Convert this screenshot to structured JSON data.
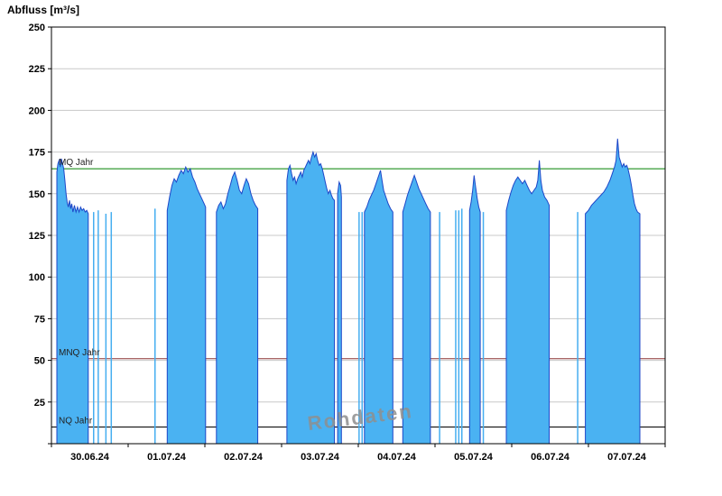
{
  "title": "Abfluss [m³/s]",
  "colors": {
    "area_fill": "#4ab2f2",
    "area_stroke": "#1d46c8",
    "spike": "#45aef0",
    "mq_line": "#008000",
    "mnq_line": "#8b3333",
    "nq_line": "#000000",
    "grid": "#c8c8c8",
    "frame": "#000000",
    "watermark": "#8f8f8f"
  },
  "chart_data": {
    "type": "area",
    "title": "Abfluss [m³/s]",
    "ylabel": "Abfluss [m³/s]",
    "xlabel": "",
    "watermark": "Rohdaten",
    "grid": "horizontal",
    "ylim": [
      0,
      250
    ],
    "y_ticks": [
      0,
      25,
      50,
      75,
      100,
      125,
      150,
      175,
      200,
      225,
      250
    ],
    "y_tick_labels_shown": [
      "25",
      "50",
      "75",
      "100",
      "125",
      "150",
      "175",
      "200",
      "225",
      "250"
    ],
    "xlim_days": [
      0,
      8
    ],
    "x_unit": "days, 0 = 29.06.24 12:00",
    "x_ticks": [
      {
        "label": "30.06.24",
        "day": 0.5
      },
      {
        "label": "01.07.24",
        "day": 1.5
      },
      {
        "label": "02.07.24",
        "day": 2.5
      },
      {
        "label": "03.07.24",
        "day": 3.5
      },
      {
        "label": "04.07.24",
        "day": 4.5
      },
      {
        "label": "05.07.24",
        "day": 5.5
      },
      {
        "label": "06.07.24",
        "day": 6.5
      },
      {
        "label": "07.07.24",
        "day": 7.5
      }
    ],
    "reference_lines": [
      {
        "label": "MQ Jahr",
        "value": 165,
        "color": "mq_line"
      },
      {
        "label": "MNQ Jahr",
        "value": 51,
        "color": "mnq_line"
      },
      {
        "label": "NQ Jahr",
        "value": 10,
        "color": "nq_line"
      }
    ],
    "series": [
      {
        "name": "Rohdaten",
        "unit": "m³/s",
        "segments": [
          [
            [
              0.07,
              163
            ],
            [
              0.085,
              168
            ],
            [
              0.1,
              170
            ],
            [
              0.115,
              166
            ],
            [
              0.13,
              171
            ],
            [
              0.145,
              168
            ],
            [
              0.16,
              165
            ],
            [
              0.175,
              158
            ],
            [
              0.19,
              150
            ],
            [
              0.205,
              145
            ],
            [
              0.22,
              142
            ],
            [
              0.235,
              146
            ],
            [
              0.25,
              141
            ],
            [
              0.265,
              144
            ],
            [
              0.28,
              139
            ],
            [
              0.3,
              143
            ],
            [
              0.32,
              139
            ],
            [
              0.34,
              142
            ],
            [
              0.36,
              139
            ],
            [
              0.38,
              142
            ],
            [
              0.4,
              140
            ],
            [
              0.42,
              141
            ],
            [
              0.44,
              139
            ],
            [
              0.46,
              140
            ],
            [
              0.48,
              138
            ]
          ],
          [
            [
              1.51,
              140
            ],
            [
              1.54,
              148
            ],
            [
              1.57,
              155
            ],
            [
              1.6,
              159
            ],
            [
              1.63,
              157
            ],
            [
              1.66,
              161
            ],
            [
              1.69,
              164
            ],
            [
              1.72,
              162
            ],
            [
              1.75,
              166
            ],
            [
              1.78,
              163
            ],
            [
              1.81,
              165
            ],
            [
              1.84,
              160
            ],
            [
              1.87,
              157
            ],
            [
              1.9,
              153
            ],
            [
              1.93,
              150
            ],
            [
              1.96,
              147
            ],
            [
              1.99,
              144
            ],
            [
              2.01,
              142
            ]
          ],
          [
            [
              2.15,
              139
            ],
            [
              2.18,
              143
            ],
            [
              2.21,
              145
            ],
            [
              2.24,
              141
            ],
            [
              2.27,
              144
            ],
            [
              2.3,
              150
            ],
            [
              2.33,
              155
            ],
            [
              2.36,
              160
            ],
            [
              2.39,
              163
            ],
            [
              2.42,
              158
            ],
            [
              2.45,
              152
            ],
            [
              2.48,
              150
            ],
            [
              2.51,
              155
            ],
            [
              2.54,
              159
            ],
            [
              2.57,
              156
            ],
            [
              2.6,
              150
            ],
            [
              2.63,
              146
            ],
            [
              2.66,
              143
            ],
            [
              2.69,
              141
            ]
          ],
          [
            [
              3.07,
              158
            ],
            [
              3.09,
              165
            ],
            [
              3.11,
              167
            ],
            [
              3.13,
              162
            ],
            [
              3.15,
              158
            ],
            [
              3.17,
              160
            ],
            [
              3.19,
              156
            ],
            [
              3.21,
              159
            ],
            [
              3.23,
              161
            ],
            [
              3.25,
              163
            ],
            [
              3.27,
              160
            ],
            [
              3.29,
              164
            ],
            [
              3.31,
              166
            ],
            [
              3.33,
              168
            ],
            [
              3.35,
              170
            ],
            [
              3.37,
              168
            ],
            [
              3.39,
              172
            ],
            [
              3.41,
              175
            ],
            [
              3.43,
              172
            ],
            [
              3.45,
              174
            ],
            [
              3.47,
              170
            ],
            [
              3.49,
              167
            ],
            [
              3.51,
              168
            ],
            [
              3.53,
              165
            ],
            [
              3.55,
              161
            ],
            [
              3.57,
              157
            ],
            [
              3.59,
              153
            ],
            [
              3.61,
              150
            ],
            [
              3.63,
              152
            ],
            [
              3.65,
              149
            ],
            [
              3.67,
              147
            ],
            [
              3.69,
              146
            ]
          ],
          [
            [
              3.73,
              150
            ],
            [
              3.75,
              157
            ],
            [
              3.77,
              155
            ],
            [
              3.78,
              148
            ]
          ],
          [
            [
              4.08,
              139
            ],
            [
              4.11,
              142
            ],
            [
              4.14,
              146
            ],
            [
              4.17,
              149
            ],
            [
              4.2,
              152
            ],
            [
              4.23,
              156
            ],
            [
              4.26,
              160
            ],
            [
              4.29,
              164
            ],
            [
              4.31,
              158
            ],
            [
              4.33,
              152
            ],
            [
              4.36,
              148
            ],
            [
              4.39,
              144
            ],
            [
              4.42,
              141
            ],
            [
              4.45,
              139
            ]
          ],
          [
            [
              4.58,
              139
            ],
            [
              4.61,
              144
            ],
            [
              4.64,
              149
            ],
            [
              4.67,
              153
            ],
            [
              4.7,
              157
            ],
            [
              4.73,
              161
            ],
            [
              4.76,
              157
            ],
            [
              4.79,
              153
            ],
            [
              4.82,
              150
            ],
            [
              4.85,
              147
            ],
            [
              4.88,
              144
            ],
            [
              4.91,
              141
            ],
            [
              4.94,
              139
            ]
          ],
          [
            [
              5.45,
              140
            ],
            [
              5.47,
              145
            ],
            [
              5.49,
              152
            ],
            [
              5.51,
              161
            ],
            [
              5.53,
              154
            ],
            [
              5.55,
              147
            ],
            [
              5.57,
              142
            ],
            [
              5.59,
              139
            ]
          ],
          [
            [
              5.93,
              140
            ],
            [
              5.96,
              146
            ],
            [
              5.99,
              151
            ],
            [
              6.02,
              155
            ],
            [
              6.05,
              158
            ],
            [
              6.08,
              160
            ],
            [
              6.11,
              158
            ],
            [
              6.14,
              156
            ],
            [
              6.17,
              158
            ],
            [
              6.2,
              155
            ],
            [
              6.23,
              152
            ],
            [
              6.26,
              150
            ],
            [
              6.29,
              152
            ],
            [
              6.32,
              154
            ],
            [
              6.34,
              158
            ],
            [
              6.36,
              170
            ],
            [
              6.38,
              158
            ],
            [
              6.4,
              152
            ],
            [
              6.43,
              148
            ],
            [
              6.46,
              146
            ],
            [
              6.49,
              143
            ]
          ],
          [
            [
              6.96,
              138
            ],
            [
              7.0,
              140
            ],
            [
              7.04,
              143
            ],
            [
              7.08,
              145
            ],
            [
              7.12,
              147
            ],
            [
              7.16,
              149
            ],
            [
              7.2,
              151
            ],
            [
              7.24,
              154
            ],
            [
              7.28,
              158
            ],
            [
              7.31,
              162
            ],
            [
              7.34,
              166
            ],
            [
              7.36,
              170
            ],
            [
              7.38,
              183
            ],
            [
              7.4,
              172
            ],
            [
              7.42,
              169
            ],
            [
              7.44,
              166
            ],
            [
              7.46,
              168
            ],
            [
              7.48,
              166
            ],
            [
              7.5,
              167
            ],
            [
              7.52,
              164
            ],
            [
              7.54,
              160
            ],
            [
              7.56,
              155
            ],
            [
              7.58,
              149
            ],
            [
              7.6,
              144
            ],
            [
              7.62,
              141
            ],
            [
              7.64,
              139
            ],
            [
              7.67,
              138
            ]
          ]
        ],
        "isolated_spikes": [
          [
            0.55,
            139
          ],
          [
            0.61,
            140
          ],
          [
            0.71,
            138
          ],
          [
            0.78,
            139
          ],
          [
            1.35,
            141
          ],
          [
            4.01,
            139
          ],
          [
            4.05,
            139
          ],
          [
            5.06,
            139
          ],
          [
            5.27,
            140
          ],
          [
            5.31,
            140
          ],
          [
            5.35,
            141
          ],
          [
            5.63,
            139
          ],
          [
            6.86,
            139
          ]
        ]
      }
    ],
    "legend": "none"
  }
}
